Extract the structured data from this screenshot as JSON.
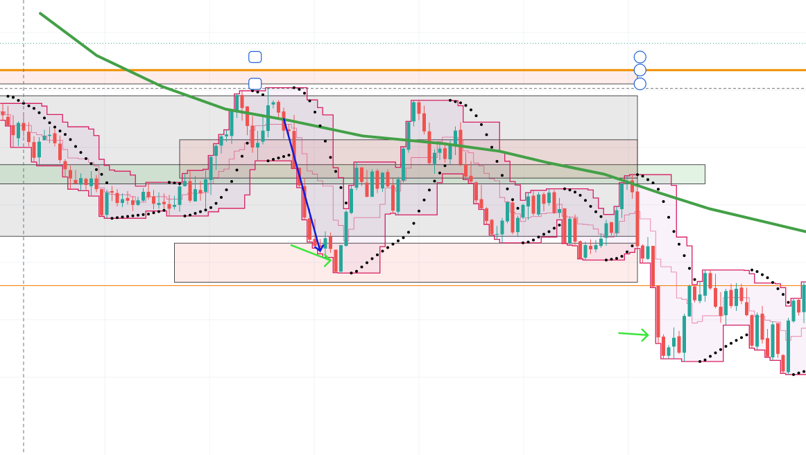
{
  "colors": {
    "background": "#ffffff",
    "grid": "#f0f3f7",
    "bull": "#26a69a",
    "bear": "#ef5350",
    "channel": "#d81b60",
    "channel_fill": "rgba(156,39,176,0.06)",
    "sma": "#43a047",
    "sar": "#000000",
    "resistance": "#ef8f00",
    "support_line": "#f57c00",
    "zone_gray": "rgba(120,120,120,0.16)",
    "zone_red": "rgba(244,67,54,0.10)",
    "zone_green": "rgba(76,175,80,0.16)",
    "arrow_blue": "#0d1bdc",
    "arrow_green": "#39e639",
    "handle": "#1e63d6",
    "crosshair": "#6b7480",
    "dotted_line": "#36a88f"
  },
  "chart_data": {
    "type": "candlestick",
    "ylim": [
      0,
      100
    ],
    "grid": true,
    "overlays": [
      "price-channel",
      "moving-average",
      "parabolic-sar",
      "horizontal-lines",
      "rectangle-zones",
      "arrows"
    ],
    "candles": [
      {
        "o": 79.4,
        "h": 81.5,
        "l": 77.1,
        "c": 78.4
      },
      {
        "o": 78.0,
        "h": 80.8,
        "l": 75.6,
        "c": 75.8
      },
      {
        "o": 75.7,
        "h": 78.4,
        "l": 70.0,
        "c": 73.2
      },
      {
        "o": 72.4,
        "h": 76.8,
        "l": 70.4,
        "c": 76.4
      },
      {
        "o": 76.4,
        "h": 78.6,
        "l": 72.8,
        "c": 74.4
      },
      {
        "o": 74.1,
        "h": 76.6,
        "l": 70.3,
        "c": 71.4
      },
      {
        "o": 71.4,
        "h": 72.9,
        "l": 66.2,
        "c": 67.3
      },
      {
        "o": 67.4,
        "h": 72.7,
        "l": 65.2,
        "c": 71.5
      },
      {
        "o": 71.9,
        "h": 74.6,
        "l": 71.8,
        "c": 73.0
      },
      {
        "o": 73.0,
        "h": 75.4,
        "l": 71.1,
        "c": 73.3
      },
      {
        "o": 73.7,
        "h": 74.8,
        "l": 70.3,
        "c": 71.1
      },
      {
        "o": 71.0,
        "h": 73.1,
        "l": 65.9,
        "c": 66.7
      },
      {
        "o": 66.4,
        "h": 66.9,
        "l": 62.3,
        "c": 64.3
      },
      {
        "o": 64.1,
        "h": 65.3,
        "l": 59.1,
        "c": 61.9
      },
      {
        "o": 61.5,
        "h": 64.1,
        "l": 60.3,
        "c": 60.6
      },
      {
        "o": 60.3,
        "h": 63.2,
        "l": 58.7,
        "c": 62.0
      },
      {
        "o": 61.8,
        "h": 62.1,
        "l": 58.7,
        "c": 60.2
      },
      {
        "o": 59.9,
        "h": 63.8,
        "l": 57.3,
        "c": 61.9
      },
      {
        "o": 61.9,
        "h": 62.8,
        "l": 58.3,
        "c": 59.1
      },
      {
        "o": 59.1,
        "h": 59.2,
        "l": 52.0,
        "c": 52.3
      },
      {
        "o": 52.4,
        "h": 59.0,
        "l": 51.5,
        "c": 58.2
      },
      {
        "o": 58.6,
        "h": 59.9,
        "l": 56.0,
        "c": 58.2
      },
      {
        "o": 58.1,
        "h": 59.1,
        "l": 54.6,
        "c": 55.5
      },
      {
        "o": 55.5,
        "h": 58.0,
        "l": 54.4,
        "c": 56.5
      },
      {
        "o": 56.8,
        "h": 58.6,
        "l": 55.1,
        "c": 56.1
      },
      {
        "o": 56.2,
        "h": 57.3,
        "l": 53.4,
        "c": 55.0
      },
      {
        "o": 55.0,
        "h": 57.1,
        "l": 54.7,
        "c": 56.2
      },
      {
        "o": 56.1,
        "h": 59.4,
        "l": 55.8,
        "c": 58.4
      },
      {
        "o": 58.4,
        "h": 60.9,
        "l": 56.4,
        "c": 57.0
      },
      {
        "o": 57.2,
        "h": 58.9,
        "l": 53.8,
        "c": 55.3
      },
      {
        "o": 55.0,
        "h": 58.3,
        "l": 54.0,
        "c": 55.5
      },
      {
        "o": 55.8,
        "h": 58.0,
        "l": 53.9,
        "c": 55.2
      },
      {
        "o": 55.2,
        "h": 57.6,
        "l": 52.1,
        "c": 54.0
      },
      {
        "o": 54.5,
        "h": 57.4,
        "l": 53.8,
        "c": 55.0
      },
      {
        "o": 55.0,
        "h": 60.3,
        "l": 53.2,
        "c": 59.8
      },
      {
        "o": 59.9,
        "h": 63.2,
        "l": 59.8,
        "c": 61.2
      },
      {
        "o": 61.2,
        "h": 64.0,
        "l": 55.6,
        "c": 56.1
      },
      {
        "o": 55.9,
        "h": 62.5,
        "l": 55.9,
        "c": 59.1
      },
      {
        "o": 58.9,
        "h": 61.2,
        "l": 56.1,
        "c": 58.0
      },
      {
        "o": 58.4,
        "h": 64.3,
        "l": 54.1,
        "c": 61.7
      },
      {
        "o": 61.5,
        "h": 67.9,
        "l": 57.6,
        "c": 67.5
      },
      {
        "o": 67.8,
        "h": 71.0,
        "l": 64.2,
        "c": 70.4
      },
      {
        "o": 70.5,
        "h": 73.4,
        "l": 68.4,
        "c": 72.9
      },
      {
        "o": 72.9,
        "h": 74.6,
        "l": 71.5,
        "c": 73.4
      },
      {
        "o": 73.0,
        "h": 79.8,
        "l": 70.9,
        "c": 79.6
      },
      {
        "o": 79.4,
        "h": 84.0,
        "l": 77.7,
        "c": 83.7
      },
      {
        "o": 83.7,
        "h": 84.8,
        "l": 77.0,
        "c": 80.3
      },
      {
        "o": 80.7,
        "h": 80.8,
        "l": 73.2,
        "c": 75.6
      },
      {
        "o": 75.7,
        "h": 78.2,
        "l": 68.6,
        "c": 70.0
      },
      {
        "o": 70.0,
        "h": 74.3,
        "l": 66.5,
        "c": 71.2
      },
      {
        "o": 71.5,
        "h": 78.1,
        "l": 70.8,
        "c": 74.4
      },
      {
        "o": 74.3,
        "h": 85.6,
        "l": 72.6,
        "c": 81.0
      },
      {
        "o": 81.2,
        "h": 82.3,
        "l": 80.2,
        "c": 81.8
      },
      {
        "o": 81.9,
        "h": 82.4,
        "l": 77.9,
        "c": 79.1
      },
      {
        "o": 79.4,
        "h": 80.4,
        "l": 72.3,
        "c": 74.4
      },
      {
        "o": 74.7,
        "h": 76.1,
        "l": 72.3,
        "c": 74.3
      },
      {
        "o": 74.3,
        "h": 78.5,
        "l": 64.5,
        "c": 64.5
      },
      {
        "o": 64.7,
        "h": 64.7,
        "l": 59.5,
        "c": 60.1
      },
      {
        "o": 59.9,
        "h": 62.1,
        "l": 51.1,
        "c": 51.7
      },
      {
        "o": 51.5,
        "h": 54.0,
        "l": 45.3,
        "c": 45.9
      },
      {
        "o": 46.1,
        "h": 51.3,
        "l": 43.7,
        "c": 44.3
      },
      {
        "o": 44.4,
        "h": 46.1,
        "l": 42.2,
        "c": 44.0
      },
      {
        "o": 43.6,
        "h": 48.1,
        "l": 41.3,
        "c": 46.3
      },
      {
        "o": 46.7,
        "h": 47.8,
        "l": 42.5,
        "c": 43.5
      },
      {
        "o": 43.3,
        "h": 43.3,
        "l": 37.3,
        "c": 37.5
      },
      {
        "o": 37.6,
        "h": 44.5,
        "l": 37.2,
        "c": 44.5
      },
      {
        "o": 44.3,
        "h": 53.6,
        "l": 44.1,
        "c": 53.2
      },
      {
        "o": 52.9,
        "h": 60.1,
        "l": 52.6,
        "c": 59.2
      },
      {
        "o": 59.5,
        "h": 66.2,
        "l": 58.8,
        "c": 64.7
      },
      {
        "o": 64.8,
        "h": 64.8,
        "l": 59.9,
        "c": 61.0
      },
      {
        "o": 60.8,
        "h": 64.1,
        "l": 57.0,
        "c": 57.1
      },
      {
        "o": 57.1,
        "h": 64.3,
        "l": 57.1,
        "c": 63.7
      },
      {
        "o": 63.9,
        "h": 64.4,
        "l": 58.1,
        "c": 59.2
      },
      {
        "o": 59.3,
        "h": 63.6,
        "l": 58.4,
        "c": 63.4
      },
      {
        "o": 63.6,
        "h": 64.3,
        "l": 59.5,
        "c": 59.8
      },
      {
        "o": 60.2,
        "h": 61.9,
        "l": 52.8,
        "c": 53.5
      },
      {
        "o": 53.2,
        "h": 62.3,
        "l": 52.4,
        "c": 61.7
      },
      {
        "o": 61.4,
        "h": 70.2,
        "l": 60.8,
        "c": 69.7
      },
      {
        "o": 69.4,
        "h": 76.8,
        "l": 68.6,
        "c": 76.6
      },
      {
        "o": 76.8,
        "h": 82.3,
        "l": 75.5,
        "c": 81.8
      },
      {
        "o": 81.8,
        "h": 82.2,
        "l": 77.1,
        "c": 78.8
      },
      {
        "o": 78.9,
        "h": 80.9,
        "l": 73.4,
        "c": 74.2
      },
      {
        "o": 74.2,
        "h": 76.5,
        "l": 65.6,
        "c": 65.9
      },
      {
        "o": 65.7,
        "h": 69.5,
        "l": 63.1,
        "c": 68.6
      },
      {
        "o": 68.6,
        "h": 70.9,
        "l": 66.7,
        "c": 69.7
      },
      {
        "o": 69.8,
        "h": 70.9,
        "l": 66.0,
        "c": 67.0
      },
      {
        "o": 66.9,
        "h": 72.0,
        "l": 65.6,
        "c": 71.0
      },
      {
        "o": 70.5,
        "h": 75.5,
        "l": 68.0,
        "c": 74.4
      },
      {
        "o": 74.6,
        "h": 76.6,
        "l": 65.1,
        "c": 65.6
      },
      {
        "o": 65.5,
        "h": 68.8,
        "l": 61.6,
        "c": 62.4
      },
      {
        "o": 62.6,
        "h": 66.4,
        "l": 60.6,
        "c": 61.1
      },
      {
        "o": 60.9,
        "h": 61.1,
        "l": 55.3,
        "c": 56.2
      },
      {
        "o": 56.5,
        "h": 60.2,
        "l": 53.8,
        "c": 54.1
      },
      {
        "o": 54.1,
        "h": 54.4,
        "l": 49.9,
        "c": 50.8
      },
      {
        "o": 51.1,
        "h": 51.3,
        "l": 47.1,
        "c": 47.4
      },
      {
        "o": 47.3,
        "h": 49.5,
        "l": 46.0,
        "c": 47.4
      },
      {
        "o": 47.3,
        "h": 51.6,
        "l": 45.1,
        "c": 50.9
      },
      {
        "o": 50.7,
        "h": 56.0,
        "l": 50.2,
        "c": 55.7
      },
      {
        "o": 55.6,
        "h": 56.2,
        "l": 47.3,
        "c": 47.8
      },
      {
        "o": 47.9,
        "h": 52.2,
        "l": 46.6,
        "c": 51.6
      },
      {
        "o": 51.7,
        "h": 55.3,
        "l": 51.3,
        "c": 55.0
      },
      {
        "o": 54.6,
        "h": 58.2,
        "l": 51.1,
        "c": 57.2
      },
      {
        "o": 57.4,
        "h": 58.8,
        "l": 52.2,
        "c": 52.7
      },
      {
        "o": 52.5,
        "h": 58.3,
        "l": 52.1,
        "c": 57.7
      },
      {
        "o": 57.8,
        "h": 58.3,
        "l": 53.3,
        "c": 55.3
      },
      {
        "o": 55.5,
        "h": 59.2,
        "l": 54.8,
        "c": 58.2
      },
      {
        "o": 58.3,
        "h": 58.9,
        "l": 52.7,
        "c": 52.9
      },
      {
        "o": 52.9,
        "h": 56.8,
        "l": 51.6,
        "c": 53.9
      },
      {
        "o": 54.1,
        "h": 54.1,
        "l": 44.9,
        "c": 45.0
      },
      {
        "o": 44.9,
        "h": 52.0,
        "l": 44.5,
        "c": 51.4
      },
      {
        "o": 51.5,
        "h": 52.5,
        "l": 44.3,
        "c": 45.4
      },
      {
        "o": 45.5,
        "h": 45.7,
        "l": 40.9,
        "c": 41.0
      },
      {
        "o": 41.2,
        "h": 45.4,
        "l": 40.6,
        "c": 44.5
      },
      {
        "o": 44.3,
        "h": 46.0,
        "l": 42.2,
        "c": 43.4
      },
      {
        "o": 43.4,
        "h": 45.8,
        "l": 42.6,
        "c": 44.5
      },
      {
        "o": 44.3,
        "h": 47.6,
        "l": 43.8,
        "c": 46.2
      },
      {
        "o": 46.4,
        "h": 51.1,
        "l": 44.3,
        "c": 50.2
      },
      {
        "o": 50.5,
        "h": 50.5,
        "l": 47.0,
        "c": 47.7
      },
      {
        "o": 47.7,
        "h": 54.6,
        "l": 46.6,
        "c": 53.6
      },
      {
        "o": 53.9,
        "h": 60.8,
        "l": 51.6,
        "c": 60.5
      },
      {
        "o": 60.6,
        "h": 62.6,
        "l": 58.9,
        "c": 61.1
      },
      {
        "o": 61.4,
        "h": 62.9,
        "l": 56.6,
        "c": 58.3
      },
      {
        "o": 58.5,
        "h": 60.1,
        "l": 43.6,
        "c": 44.2
      },
      {
        "o": 44.4,
        "h": 44.7,
        "l": 39.8,
        "c": 41.0
      },
      {
        "o": 40.9,
        "h": 46.6,
        "l": 40.6,
        "c": 44.2
      },
      {
        "o": 44.3,
        "h": 44.3,
        "l": 33.4,
        "c": 33.7
      },
      {
        "o": 33.9,
        "h": 34.0,
        "l": 18.8,
        "c": 20.4
      },
      {
        "o": 20.6,
        "h": 21.2,
        "l": 14.8,
        "c": 15.6
      },
      {
        "o": 15.6,
        "h": 18.4,
        "l": 14.8,
        "c": 17.8
      },
      {
        "o": 18.0,
        "h": 23.0,
        "l": 14.8,
        "c": 20.3
      },
      {
        "o": 20.7,
        "h": 22.1,
        "l": 16.1,
        "c": 16.4
      },
      {
        "o": 16.4,
        "h": 26.6,
        "l": 14.1,
        "c": 26.0
      },
      {
        "o": 25.9,
        "h": 34.2,
        "l": 25.7,
        "c": 33.8
      },
      {
        "o": 33.7,
        "h": 34.0,
        "l": 29.5,
        "c": 30.1
      },
      {
        "o": 29.9,
        "h": 35.0,
        "l": 29.3,
        "c": 31.6
      },
      {
        "o": 31.3,
        "h": 38.0,
        "l": 29.7,
        "c": 37.2
      },
      {
        "o": 37.2,
        "h": 37.9,
        "l": 32.8,
        "c": 33.2
      },
      {
        "o": 33.3,
        "h": 37.0,
        "l": 28.0,
        "c": 28.4
      },
      {
        "o": 28.4,
        "h": 32.2,
        "l": 24.2,
        "c": 26.0
      },
      {
        "o": 26.2,
        "h": 33.1,
        "l": 23.6,
        "c": 32.5
      },
      {
        "o": 32.8,
        "h": 34.4,
        "l": 28.0,
        "c": 28.6
      },
      {
        "o": 28.6,
        "h": 34.6,
        "l": 27.3,
        "c": 33.1
      },
      {
        "o": 33.4,
        "h": 34.4,
        "l": 29.1,
        "c": 29.9
      },
      {
        "o": 29.6,
        "h": 33.4,
        "l": 25.9,
        "c": 26.2
      },
      {
        "o": 26.2,
        "h": 26.5,
        "l": 17.6,
        "c": 18.2
      },
      {
        "o": 18.0,
        "h": 26.9,
        "l": 17.1,
        "c": 26.3
      },
      {
        "o": 26.6,
        "h": 28.6,
        "l": 18.8,
        "c": 19.8
      },
      {
        "o": 20.2,
        "h": 22.6,
        "l": 15.2,
        "c": 15.4
      },
      {
        "o": 15.2,
        "h": 24.6,
        "l": 14.4,
        "c": 23.8
      },
      {
        "o": 24.1,
        "h": 24.1,
        "l": 15.1,
        "c": 16.1
      },
      {
        "o": 15.8,
        "h": 16.0,
        "l": 11.0,
        "c": 11.5
      },
      {
        "o": 11.3,
        "h": 25.5,
        "l": 10.7,
        "c": 24.8
      },
      {
        "o": 24.6,
        "h": 30.6,
        "l": 24.2,
        "c": 30.0
      },
      {
        "o": 30.2,
        "h": 30.4,
        "l": 26.1,
        "c": 26.9
      },
      {
        "o": 27.0,
        "h": 34.9,
        "l": 24.1,
        "c": 34.1
      },
      {
        "o": 34.5,
        "h": 34.9,
        "l": 25.0,
        "c": 25.9
      },
      {
        "o": 26.0,
        "h": 27.1,
        "l": 20.5,
        "c": 21.3
      },
      {
        "o": 21.4,
        "h": 30.3,
        "l": 21.2,
        "c": 29.8
      },
      {
        "o": 30.0,
        "h": 31.7,
        "l": 26.5,
        "c": 27.8
      },
      {
        "o": 27.5,
        "h": 29.8,
        "l": 22.6,
        "c": 23.2
      }
    ],
    "sma": [
      {
        "x": 0.05,
        "y": 105
      },
      {
        "x": 0.12,
        "y": 94
      },
      {
        "x": 0.2,
        "y": 86
      },
      {
        "x": 0.28,
        "y": 80
      },
      {
        "x": 0.36,
        "y": 77
      },
      {
        "x": 0.45,
        "y": 73
      },
      {
        "x": 0.55,
        "y": 71
      },
      {
        "x": 0.62,
        "y": 69
      },
      {
        "x": 0.68,
        "y": 66
      },
      {
        "x": 0.75,
        "y": 63
      },
      {
        "x": 0.82,
        "y": 58
      },
      {
        "x": 0.88,
        "y": 54
      },
      {
        "x": 0.94,
        "y": 51
      },
      {
        "x": 1.0,
        "y": 48
      }
    ],
    "resistance_level": 90.2,
    "support_level": 33.9,
    "dotted_level": 97.2,
    "dashed_level": 85.4
  }
}
